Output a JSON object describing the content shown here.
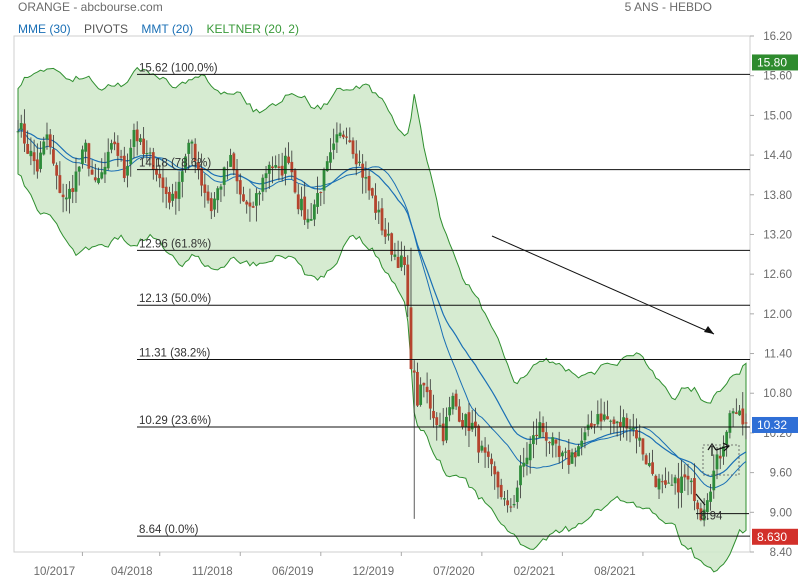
{
  "header": {
    "title": "ORANGE - abcbourse.com",
    "period": "5 ANS - HEBDO"
  },
  "legend": [
    {
      "label": "MME (30)",
      "color": "#1a6fb5"
    },
    {
      "label": "PIVOTS",
      "color": "#555555"
    },
    {
      "label": "MMT (20)",
      "color": "#1a6fb5"
    },
    {
      "label": "KELTNER (20, 2)",
      "color": "#3a9a3a"
    }
  ],
  "chart_data": {
    "type": "candlestick",
    "title": "ORANGE",
    "ylim": [
      8.4,
      16.2
    ],
    "y_ticks": [
      "16.20",
      "15.60",
      "15.00",
      "14.40",
      "13.80",
      "13.20",
      "12.60",
      "12.00",
      "11.40",
      "10.80",
      "10.20",
      "9.60",
      "9.00",
      "8.40"
    ],
    "x_ticks": [
      "10/2017",
      "04/2018",
      "11/2018",
      "06/2019",
      "12/2019",
      "07/2020",
      "02/2021",
      "08/2021"
    ],
    "fib_levels": [
      {
        "value": 15.62,
        "label": "15.62  (100.0%)"
      },
      {
        "value": 14.18,
        "label": "14.18  (78.6%)"
      },
      {
        "value": 12.96,
        "label": "12.96  (61.8%)"
      },
      {
        "value": 12.13,
        "label": "12.13  (50.0%)"
      },
      {
        "value": 11.31,
        "label": "11.31  (38.2%)"
      },
      {
        "value": 10.29,
        "label": "10.29  (23.6%)"
      },
      {
        "value": 8.64,
        "label": "8.64  (0.0%)"
      }
    ],
    "price_badges": [
      {
        "value": 15.8,
        "label": "15.80",
        "color": "#2e8b2e"
      },
      {
        "value": 10.32,
        "label": "10.32",
        "color": "#2f6fd6"
      },
      {
        "value": 8.63,
        "label": "8.630",
        "color": "#d2302a"
      }
    ],
    "annotation_low": {
      "label": "8.94",
      "value": 8.94
    },
    "close_keypoints": [
      [
        0,
        14.9
      ],
      [
        3,
        14.5
      ],
      [
        6,
        14.2
      ],
      [
        9,
        14.7
      ],
      [
        12,
        14.0
      ],
      [
        15,
        13.7
      ],
      [
        18,
        14.1
      ],
      [
        21,
        14.5
      ],
      [
        24,
        13.9
      ],
      [
        27,
        14.2
      ],
      [
        30,
        14.6
      ],
      [
        33,
        14.1
      ],
      [
        36,
        14.8
      ],
      [
        39,
        14.4
      ],
      [
        42,
        14.3
      ],
      [
        45,
        13.9
      ],
      [
        48,
        13.7
      ],
      [
        51,
        14.2
      ],
      [
        54,
        14.6
      ],
      [
        57,
        14.0
      ],
      [
        60,
        13.6
      ],
      [
        63,
        14.0
      ],
      [
        66,
        14.3
      ],
      [
        69,
        13.8
      ],
      [
        72,
        13.5
      ],
      [
        75,
        13.9
      ],
      [
        78,
        14.3
      ],
      [
        81,
        14.1
      ],
      [
        84,
        14.4
      ],
      [
        87,
        13.7
      ],
      [
        90,
        13.4
      ],
      [
        93,
        13.8
      ],
      [
        96,
        14.2
      ],
      [
        99,
        14.6
      ],
      [
        102,
        14.8
      ],
      [
        105,
        14.4
      ],
      [
        108,
        14.0
      ],
      [
        111,
        13.6
      ],
      [
        114,
        13.2
      ],
      [
        117,
        12.9
      ],
      [
        120,
        12.7
      ],
      [
        122,
        11.3
      ],
      [
        124,
        10.7
      ],
      [
        126,
        10.9
      ],
      [
        129,
        10.5
      ],
      [
        132,
        10.2
      ],
      [
        135,
        10.7
      ],
      [
        138,
        10.4
      ],
      [
        141,
        10.3
      ],
      [
        144,
        9.9
      ],
      [
        147,
        9.6
      ],
      [
        150,
        9.3
      ],
      [
        152,
        9.0
      ],
      [
        154,
        9.2
      ],
      [
        156,
        9.6
      ],
      [
        159,
        10.0
      ],
      [
        162,
        10.3
      ],
      [
        165,
        10.1
      ],
      [
        168,
        9.8
      ],
      [
        171,
        9.8
      ],
      [
        174,
        10.0
      ],
      [
        177,
        10.2
      ],
      [
        180,
        10.5
      ],
      [
        183,
        10.4
      ],
      [
        186,
        10.3
      ],
      [
        189,
        10.4
      ],
      [
        192,
        10.2
      ],
      [
        195,
        9.8
      ],
      [
        198,
        9.5
      ],
      [
        201,
        9.3
      ],
      [
        204,
        9.4
      ],
      [
        207,
        9.5
      ],
      [
        210,
        9.3
      ],
      [
        212,
        9.0
      ],
      [
        214,
        9.3
      ],
      [
        216,
        9.6
      ],
      [
        218,
        9.9
      ],
      [
        220,
        10.3
      ],
      [
        222,
        10.6
      ],
      [
        224,
        10.4
      ],
      [
        226,
        10.3
      ]
    ]
  }
}
